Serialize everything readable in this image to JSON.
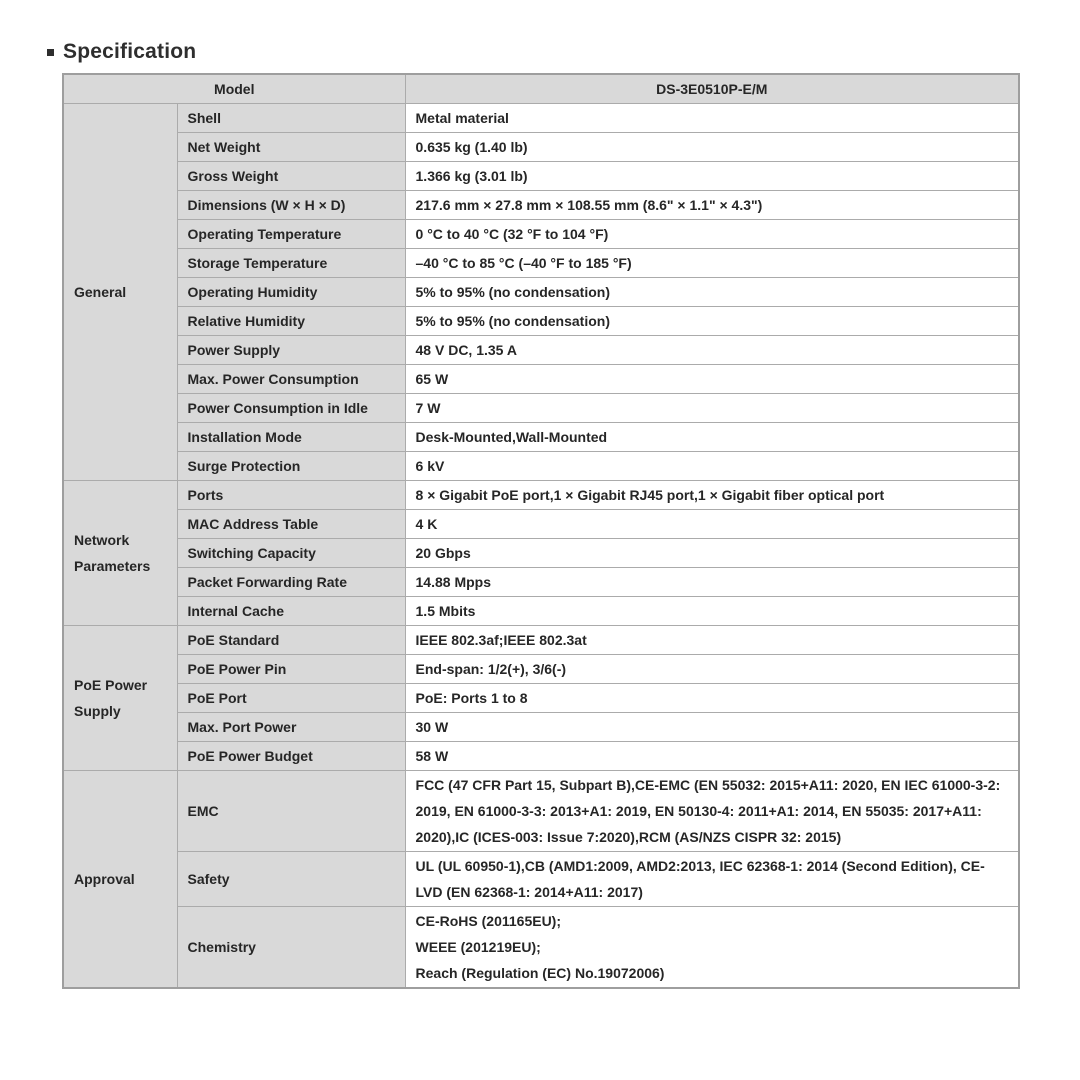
{
  "colors": {
    "cell_gray": "#d9d9d9",
    "border_inner": "#ababab",
    "border_outer": "#9e9e9e",
    "text": "#262626",
    "bg": "#ffffff"
  },
  "page": {
    "title": "Specification"
  },
  "table": {
    "header": {
      "model_label": "Model",
      "model_value": "DS-3E0510P-E/M"
    },
    "groups": [
      {
        "name": "General",
        "rows": [
          {
            "label": "Shell",
            "value": "Metal material"
          },
          {
            "label": "Net Weight",
            "value": "0.635 kg (1.40 lb)"
          },
          {
            "label": "Gross Weight",
            "value": "1.366 kg (3.01 lb)"
          },
          {
            "label": "Dimensions (W × H × D)",
            "value": "217.6 mm × 27.8 mm × 108.55 mm (8.6\" × 1.1\" × 4.3\")"
          },
          {
            "label": "Operating Temperature",
            "value": "0 °C to 40 °C (32 °F to 104 °F)"
          },
          {
            "label": "Storage Temperature",
            "value": "–40 °C to 85 °C (–40 °F to 185 °F)"
          },
          {
            "label": "Operating Humidity",
            "value": "5% to 95% (no condensation)"
          },
          {
            "label": "Relative Humidity",
            "value": "5% to 95% (no condensation)"
          },
          {
            "label": "Power Supply",
            "value": "48 V DC, 1.35 A"
          },
          {
            "label": "Max. Power Consumption",
            "value": "65 W"
          },
          {
            "label": "Power Consumption in Idle",
            "value": "7 W"
          },
          {
            "label": "Installation Mode",
            "value": "Desk-Mounted,Wall-Mounted"
          },
          {
            "label": "Surge Protection",
            "value": "6 kV"
          }
        ]
      },
      {
        "name": "Network Parameters",
        "rows": [
          {
            "label": "Ports",
            "value": "8 × Gigabit PoE port,1 × Gigabit RJ45 port,1 × Gigabit fiber optical port"
          },
          {
            "label": "MAC Address Table",
            "value": "4 K"
          },
          {
            "label": "Switching Capacity",
            "value": "20 Gbps"
          },
          {
            "label": "Packet Forwarding Rate",
            "value": "14.88 Mpps"
          },
          {
            "label": "Internal Cache",
            "value": "1.5 Mbits"
          }
        ]
      },
      {
        "name": "PoE Power Supply",
        "rows": [
          {
            "label": "PoE Standard",
            "value": "IEEE 802.3af;IEEE 802.3at"
          },
          {
            "label": "PoE Power Pin",
            "value": "End-span: 1/2(+), 3/6(-)"
          },
          {
            "label": "PoE Port",
            "value": "PoE: Ports 1 to 8"
          },
          {
            "label": "Max. Port Power",
            "value": "30 W"
          },
          {
            "label": "PoE Power Budget",
            "value": "58 W"
          }
        ]
      },
      {
        "name": "Approval",
        "rows": [
          {
            "label": "EMC",
            "value": "FCC (47 CFR Part 15, Subpart B),CE-EMC (EN 55032: 2015+A11: 2020, EN IEC 61000-3-2: 2019, EN 61000-3-3: 2013+A1: 2019, EN 50130-4: 2011+A1: 2014, EN 55035: 2017+A11: 2020),IC (ICES-003: Issue 7:2020),RCM (AS/NZS CISPR 32: 2015)"
          },
          {
            "label": "Safety",
            "value": "UL (UL 60950-1),CB (AMD1:2009, AMD2:2013, IEC 62368-1: 2014 (Second Edition), CE-LVD (EN 62368-1: 2014+A11: 2017)"
          },
          {
            "label": "Chemistry",
            "value_lines": [
              "CE-RoHS (201165EU);",
              "WEEE (201219EU);",
              "Reach (Regulation (EC) No.19072006)"
            ]
          }
        ]
      }
    ]
  }
}
